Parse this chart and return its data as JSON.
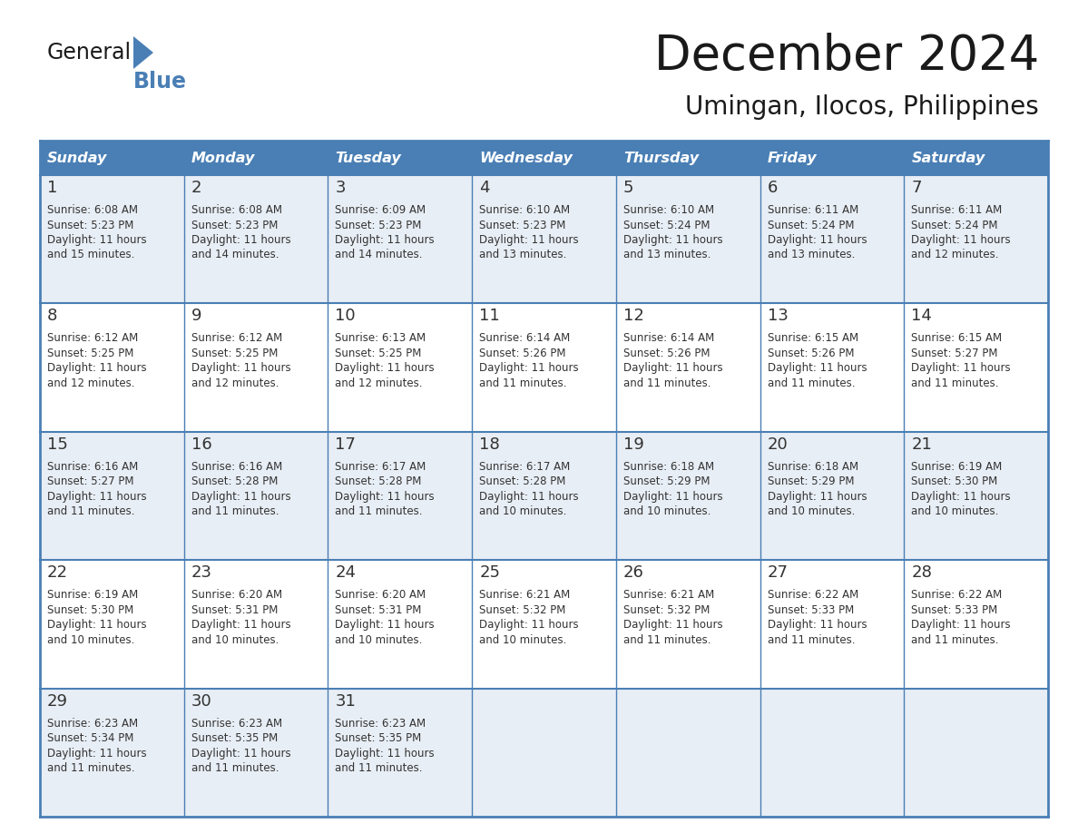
{
  "title": "December 2024",
  "subtitle": "Umingan, Ilocos, Philippines",
  "header_color": "#4a7fb5",
  "header_text_color": "#ffffff",
  "border_color": "#4a7fb5",
  "row_colors": [
    "#e8eef5",
    "#ffffff"
  ],
  "day_names": [
    "Sunday",
    "Monday",
    "Tuesday",
    "Wednesday",
    "Thursday",
    "Friday",
    "Saturday"
  ],
  "title_color": "#1a1a1a",
  "subtitle_color": "#1a1a1a",
  "text_color": "#333333",
  "calendar_data": [
    [
      {
        "day": "1",
        "sunrise": "6:08 AM",
        "sunset": "5:23 PM",
        "daylight1": "Daylight: 11 hours",
        "daylight2": "and 15 minutes."
      },
      {
        "day": "2",
        "sunrise": "6:08 AM",
        "sunset": "5:23 PM",
        "daylight1": "Daylight: 11 hours",
        "daylight2": "and 14 minutes."
      },
      {
        "day": "3",
        "sunrise": "6:09 AM",
        "sunset": "5:23 PM",
        "daylight1": "Daylight: 11 hours",
        "daylight2": "and 14 minutes."
      },
      {
        "day": "4",
        "sunrise": "6:10 AM",
        "sunset": "5:23 PM",
        "daylight1": "Daylight: 11 hours",
        "daylight2": "and 13 minutes."
      },
      {
        "day": "5",
        "sunrise": "6:10 AM",
        "sunset": "5:24 PM",
        "daylight1": "Daylight: 11 hours",
        "daylight2": "and 13 minutes."
      },
      {
        "day": "6",
        "sunrise": "6:11 AM",
        "sunset": "5:24 PM",
        "daylight1": "Daylight: 11 hours",
        "daylight2": "and 13 minutes."
      },
      {
        "day": "7",
        "sunrise": "6:11 AM",
        "sunset": "5:24 PM",
        "daylight1": "Daylight: 11 hours",
        "daylight2": "and 12 minutes."
      }
    ],
    [
      {
        "day": "8",
        "sunrise": "6:12 AM",
        "sunset": "5:25 PM",
        "daylight1": "Daylight: 11 hours",
        "daylight2": "and 12 minutes."
      },
      {
        "day": "9",
        "sunrise": "6:12 AM",
        "sunset": "5:25 PM",
        "daylight1": "Daylight: 11 hours",
        "daylight2": "and 12 minutes."
      },
      {
        "day": "10",
        "sunrise": "6:13 AM",
        "sunset": "5:25 PM",
        "daylight1": "Daylight: 11 hours",
        "daylight2": "and 12 minutes."
      },
      {
        "day": "11",
        "sunrise": "6:14 AM",
        "sunset": "5:26 PM",
        "daylight1": "Daylight: 11 hours",
        "daylight2": "and 11 minutes."
      },
      {
        "day": "12",
        "sunrise": "6:14 AM",
        "sunset": "5:26 PM",
        "daylight1": "Daylight: 11 hours",
        "daylight2": "and 11 minutes."
      },
      {
        "day": "13",
        "sunrise": "6:15 AM",
        "sunset": "5:26 PM",
        "daylight1": "Daylight: 11 hours",
        "daylight2": "and 11 minutes."
      },
      {
        "day": "14",
        "sunrise": "6:15 AM",
        "sunset": "5:27 PM",
        "daylight1": "Daylight: 11 hours",
        "daylight2": "and 11 minutes."
      }
    ],
    [
      {
        "day": "15",
        "sunrise": "6:16 AM",
        "sunset": "5:27 PM",
        "daylight1": "Daylight: 11 hours",
        "daylight2": "and 11 minutes."
      },
      {
        "day": "16",
        "sunrise": "6:16 AM",
        "sunset": "5:28 PM",
        "daylight1": "Daylight: 11 hours",
        "daylight2": "and 11 minutes."
      },
      {
        "day": "17",
        "sunrise": "6:17 AM",
        "sunset": "5:28 PM",
        "daylight1": "Daylight: 11 hours",
        "daylight2": "and 11 minutes."
      },
      {
        "day": "18",
        "sunrise": "6:17 AM",
        "sunset": "5:28 PM",
        "daylight1": "Daylight: 11 hours",
        "daylight2": "and 10 minutes."
      },
      {
        "day": "19",
        "sunrise": "6:18 AM",
        "sunset": "5:29 PM",
        "daylight1": "Daylight: 11 hours",
        "daylight2": "and 10 minutes."
      },
      {
        "day": "20",
        "sunrise": "6:18 AM",
        "sunset": "5:29 PM",
        "daylight1": "Daylight: 11 hours",
        "daylight2": "and 10 minutes."
      },
      {
        "day": "21",
        "sunrise": "6:19 AM",
        "sunset": "5:30 PM",
        "daylight1": "Daylight: 11 hours",
        "daylight2": "and 10 minutes."
      }
    ],
    [
      {
        "day": "22",
        "sunrise": "6:19 AM",
        "sunset": "5:30 PM",
        "daylight1": "Daylight: 11 hours",
        "daylight2": "and 10 minutes."
      },
      {
        "day": "23",
        "sunrise": "6:20 AM",
        "sunset": "5:31 PM",
        "daylight1": "Daylight: 11 hours",
        "daylight2": "and 10 minutes."
      },
      {
        "day": "24",
        "sunrise": "6:20 AM",
        "sunset": "5:31 PM",
        "daylight1": "Daylight: 11 hours",
        "daylight2": "and 10 minutes."
      },
      {
        "day": "25",
        "sunrise": "6:21 AM",
        "sunset": "5:32 PM",
        "daylight1": "Daylight: 11 hours",
        "daylight2": "and 10 minutes."
      },
      {
        "day": "26",
        "sunrise": "6:21 AM",
        "sunset": "5:32 PM",
        "daylight1": "Daylight: 11 hours",
        "daylight2": "and 11 minutes."
      },
      {
        "day": "27",
        "sunrise": "6:22 AM",
        "sunset": "5:33 PM",
        "daylight1": "Daylight: 11 hours",
        "daylight2": "and 11 minutes."
      },
      {
        "day": "28",
        "sunrise": "6:22 AM",
        "sunset": "5:33 PM",
        "daylight1": "Daylight: 11 hours",
        "daylight2": "and 11 minutes."
      }
    ],
    [
      {
        "day": "29",
        "sunrise": "6:23 AM",
        "sunset": "5:34 PM",
        "daylight1": "Daylight: 11 hours",
        "daylight2": "and 11 minutes."
      },
      {
        "day": "30",
        "sunrise": "6:23 AM",
        "sunset": "5:35 PM",
        "daylight1": "Daylight: 11 hours",
        "daylight2": "and 11 minutes."
      },
      {
        "day": "31",
        "sunrise": "6:23 AM",
        "sunset": "5:35 PM",
        "daylight1": "Daylight: 11 hours",
        "daylight2": "and 11 minutes."
      },
      null,
      null,
      null,
      null
    ]
  ]
}
